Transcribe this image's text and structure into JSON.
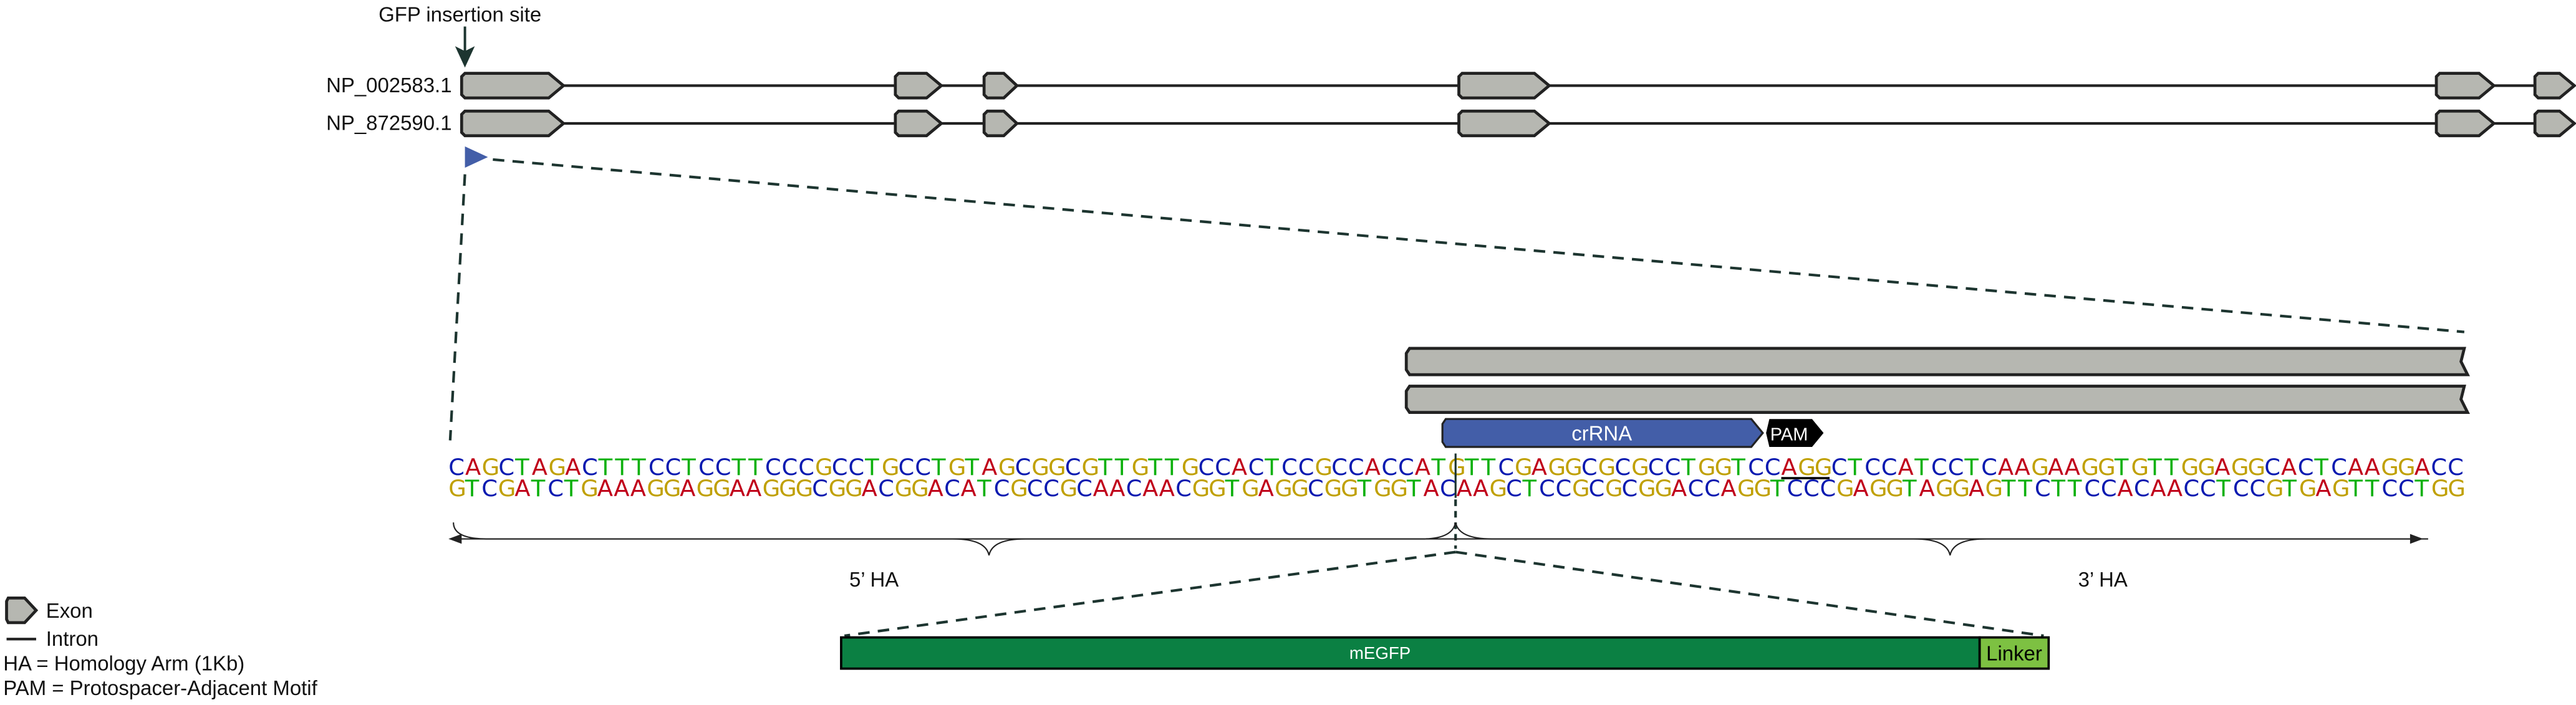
{
  "header": {
    "insertion_label": "GFP insertion site"
  },
  "transcripts": [
    {
      "label": "NP_002583.1"
    },
    {
      "label": "NP_872590.1"
    }
  ],
  "features": {
    "crrna_label": "crRNA",
    "pam_label": "PAM",
    "megfp_label": "mEGFP",
    "linker_label": "Linker"
  },
  "sequence": {
    "top": "CAGCTAGACTTTCCTCCTTCCCGCCTGCCTGTAGCGGCGTTGTTGCCACTCCGCCACCATGTTCGAGGCGCGCCTGGTCCAGGCTCCATCCTCAAGAAGGTGTTGGAGGCACTCAAGGACC",
    "bottom": "GTCGATCTGAAAGGAGGAAGGGCGGACGGACATCGCCGCAACAACGGTGAGGCGGTGGTACAAGCTCCGCGCGGACCAGGTCCCGAGGTAGGAGTTCTTCCACAACCTCCGTGAGTTCCTGG",
    "pam_underlined": "AGG"
  },
  "arms": {
    "left_label": "5’ HA",
    "right_label": "3’ HA"
  },
  "legend": {
    "exon": "Exon",
    "intron": "Intron",
    "ha_def": "HA = Homology Arm (1Kb)",
    "pam_def": "PAM = Protospacer-Adjacent Motif"
  },
  "colors": {
    "A": "#c0001a",
    "C": "#0a1ab0",
    "G": "#c0a000",
    "T": "#0cb00c",
    "exon": "#b6b7b1",
    "crrna": "#435ea8",
    "megfp": "#0b8043",
    "linker": "#7dc142"
  }
}
